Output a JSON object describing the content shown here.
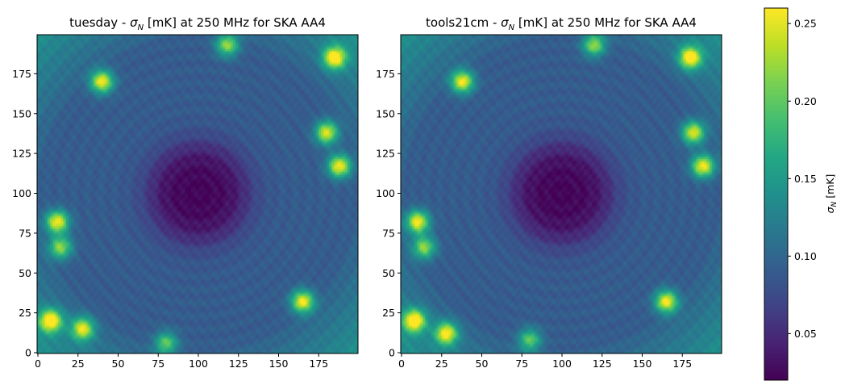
{
  "chart_data": [
    {
      "type": "heatmap",
      "title_prefix": "tuesday - ",
      "title_symbol": "σ",
      "title_subscript": "N",
      "title_suffix": " [mK] at 250 MHz for SKA AA4",
      "xlim": [
        0,
        199
      ],
      "ylim": [
        0,
        199
      ],
      "xticks": [
        "0",
        "25",
        "50",
        "75",
        "100",
        "125",
        "150",
        "175"
      ],
      "yticks": [
        "0",
        "25",
        "50",
        "75",
        "100",
        "125",
        "150",
        "175"
      ],
      "center": [
        100,
        100
      ],
      "hotspots": [
        {
          "x": 40,
          "y": 170,
          "value": 0.26
        },
        {
          "x": 118,
          "y": 193,
          "value": 0.22
        },
        {
          "x": 185,
          "y": 185,
          "value": 0.26
        },
        {
          "x": 180,
          "y": 138,
          "value": 0.25
        },
        {
          "x": 188,
          "y": 117,
          "value": 0.26
        },
        {
          "x": 12,
          "y": 82,
          "value": 0.26
        },
        {
          "x": 14,
          "y": 66,
          "value": 0.22
        },
        {
          "x": 8,
          "y": 20,
          "value": 0.26
        },
        {
          "x": 28,
          "y": 15,
          "value": 0.24
        },
        {
          "x": 80,
          "y": 6,
          "value": 0.2
        },
        {
          "x": 165,
          "y": 32,
          "value": 0.26
        }
      ]
    },
    {
      "type": "heatmap",
      "title_prefix": "tools21cm - ",
      "title_symbol": "σ",
      "title_subscript": "N",
      "title_suffix": " [mK] at 250 MHz for SKA AA4",
      "xlim": [
        0,
        199
      ],
      "ylim": [
        0,
        199
      ],
      "xticks": [
        "0",
        "25",
        "50",
        "75",
        "100",
        "125",
        "150",
        "175"
      ],
      "yticks": [
        "0",
        "25",
        "50",
        "75",
        "100",
        "125",
        "150",
        "175"
      ],
      "center": [
        100,
        100
      ],
      "hotspots": [
        {
          "x": 38,
          "y": 170,
          "value": 0.26
        },
        {
          "x": 120,
          "y": 193,
          "value": 0.22
        },
        {
          "x": 180,
          "y": 185,
          "value": 0.26
        },
        {
          "x": 182,
          "y": 138,
          "value": 0.25
        },
        {
          "x": 188,
          "y": 117,
          "value": 0.26
        },
        {
          "x": 10,
          "y": 82,
          "value": 0.26
        },
        {
          "x": 14,
          "y": 66,
          "value": 0.22
        },
        {
          "x": 8,
          "y": 20,
          "value": 0.26
        },
        {
          "x": 28,
          "y": 12,
          "value": 0.25
        },
        {
          "x": 80,
          "y": 8,
          "value": 0.2
        },
        {
          "x": 165,
          "y": 32,
          "value": 0.26
        }
      ]
    }
  ],
  "colorbar": {
    "label_symbol": "σ",
    "label_subscript": "N",
    "label_suffix": " [mK]",
    "range": [
      0.02,
      0.26
    ],
    "ticks": [
      "0.05",
      "0.10",
      "0.15",
      "0.20",
      "0.25"
    ],
    "tick_values": [
      0.05,
      0.1,
      0.15,
      0.2,
      0.25
    ],
    "colormap": "viridis"
  }
}
